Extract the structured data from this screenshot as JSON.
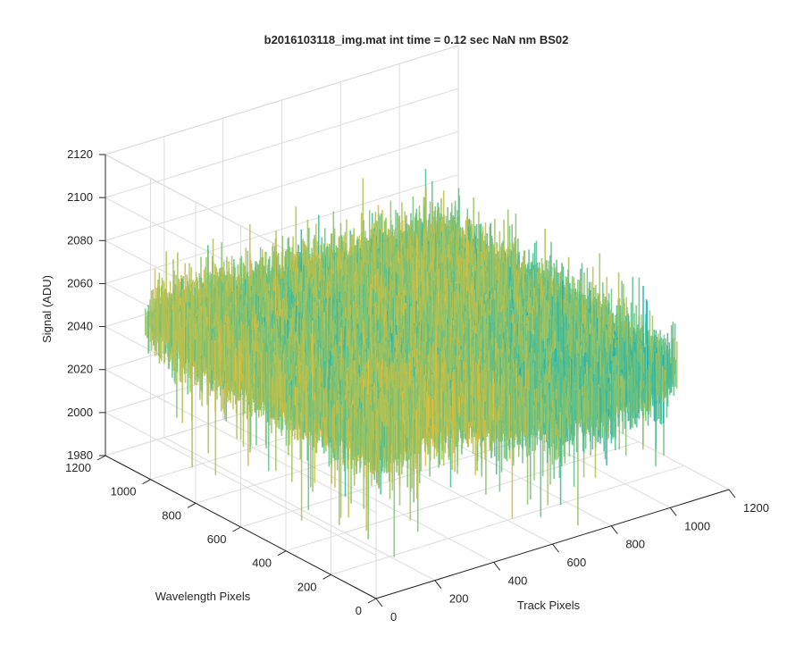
{
  "chart_data": {
    "type": "surface",
    "title": "b2016103118_img.mat int time = 0.12 sec  NaN nm BS02",
    "xlabel": "Track Pixels",
    "ylabel": "Wavelength Pixels",
    "zlabel": "Signal (ADU)",
    "xlim": [
      0,
      1200
    ],
    "ylim": [
      0,
      1200
    ],
    "zlim": [
      1980,
      2120
    ],
    "x_ticks": [
      "0",
      "200",
      "400",
      "600",
      "800",
      "1000",
      "1200"
    ],
    "y_ticks": [
      "0",
      "200",
      "400",
      "600",
      "800",
      "1000",
      "1200"
    ],
    "z_ticks": [
      "1980",
      "2000",
      "2020",
      "2040",
      "2060",
      "2080",
      "2100",
      "2120"
    ],
    "data_extent": {
      "x": [
        1,
        1024
      ],
      "y": [
        1,
        1024
      ]
    },
    "surface_mean": 2050,
    "surface_min": 1975,
    "surface_max": 2100,
    "grid": true,
    "colormap": [
      "#0a9fd6",
      "#19b2b5",
      "#5cc08a",
      "#a5c25a",
      "#d9bb3d",
      "#f5c62b"
    ]
  }
}
